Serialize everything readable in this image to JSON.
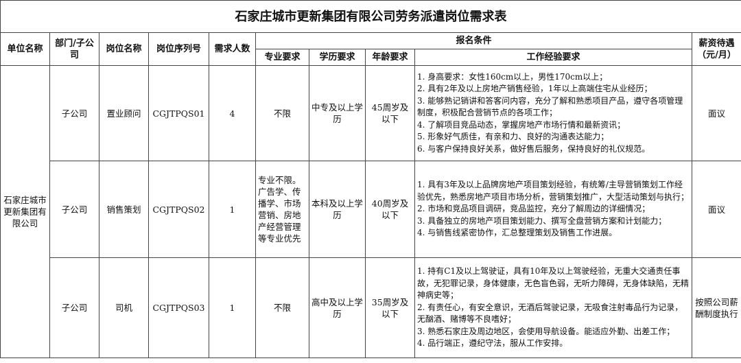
{
  "title": "石家庄城市更新集团有限公司劳务派遣岗位需求表",
  "headers": {
    "unit": "单位名称",
    "dept": "部门/子公司",
    "position": "岗位名称",
    "code": "岗位序列号",
    "count": "需求人数",
    "requirements": "报名条件",
    "major": "专业要求",
    "education": "学历要求",
    "age": "年龄要求",
    "experience": "工作经验要求",
    "salary": "薪资待遇（元/月）"
  },
  "unit_name": "石家庄城市更新集团有限公司",
  "rows": [
    {
      "dept": "子公司",
      "position": "置业顾问",
      "code": "CGJTPQS01",
      "count": "4",
      "major": "不限",
      "education": "中专及以上学历",
      "age": "45周岁及以下",
      "experience": [
        "1. 身高要求：女性160cm以上，男性170cm以上；",
        "2. 具有2年及以上房地产销售经验，1年以上高端住宅从业经历；",
        "3. 能够熟记销讲和答客问内容，充分了解和熟悉项目产品，遵守各项管理制度，积极配合营销节点的各项工作；",
        "4. 了解项目竞品动态，掌握房地产市场行情和最新资讯；",
        "5. 形象好气质佳，有亲和力、良好的沟通表达能力；",
        "6. 与客户保持良好关系，做好售后服务，保持良好的礼仪规范。"
      ],
      "salary": "面议"
    },
    {
      "dept": "子公司",
      "position": "销售策划",
      "code": "CGJTPQS02",
      "count": "1",
      "major": "专业不限。广告学、传播学、市场营销、房地产经营管理等专业优先",
      "education": "本科及以上学历",
      "age": "40周岁及以下",
      "experience": [
        "1. 具有3年及以上品牌房地产项目策划经验，有统筹/主导营销策划工作经验优先，熟悉房地产项目市场分析，营销策划推广，大型活动策划与执行；",
        "2. 市场和竞品项目调研，竞品监控，充分了解周边的详细情况；",
        "3. 具备独立的房地产项目策划能力、撰写全盘营销方案和计划能力；",
        "4. 与销售线紧密协作，汇总整理策划及销售工作进展。"
      ],
      "salary": "面议"
    },
    {
      "dept": "子公司",
      "position": "司机",
      "code": "CGJTPQS03",
      "count": "1",
      "major": "不限",
      "education": "高中及以上学历",
      "age": "35周岁及以下",
      "experience": [
        "1. 持有C1及以上驾驶证，具有10年及以上驾驶经验，无重大交通责任事故，无犯罪记录，身体健康，无色盲色弱，无听力障碍，无身体缺陷，无精神病史等；",
        "2. 有责任心，有安全意识，无酒后驾驶记录，无吸食注射毒品行为记录，无酗酒、赌博等不良嗜好；",
        "3. 熟悉石家庄及周边地区，会使用导航设备。能适应外勤、出差工作；",
        "4. 品行端正，遵纪守法，服从工作安排。"
      ],
      "salary": "按照公司薪酬制度执行"
    }
  ]
}
